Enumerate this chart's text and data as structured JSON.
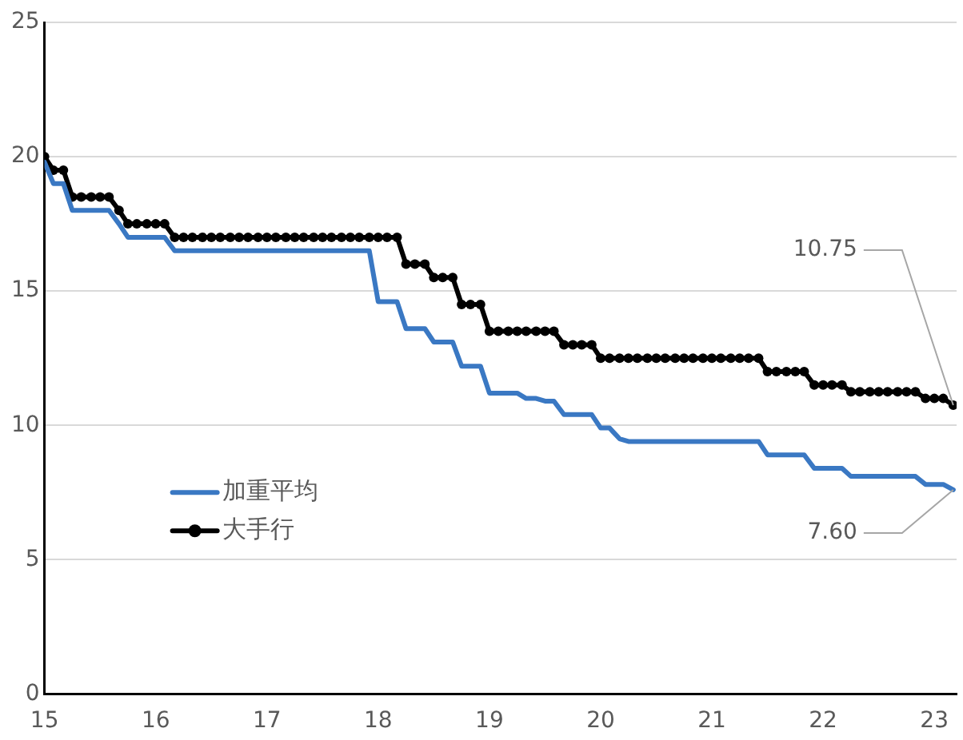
{
  "chart_data": {
    "type": "line",
    "x": [
      15,
      15.08,
      15.17,
      15.25,
      15.33,
      15.42,
      15.5,
      15.58,
      15.67,
      15.75,
      15.83,
      15.92,
      16,
      16.08,
      16.17,
      16.25,
      16.33,
      16.42,
      16.5,
      16.58,
      16.67,
      16.75,
      16.83,
      16.92,
      17,
      17.08,
      17.17,
      17.25,
      17.33,
      17.42,
      17.5,
      17.58,
      17.67,
      17.75,
      17.83,
      17.92,
      18,
      18.08,
      18.17,
      18.25,
      18.33,
      18.42,
      18.5,
      18.58,
      18.67,
      18.75,
      18.83,
      18.92,
      19,
      19.08,
      19.17,
      19.25,
      19.33,
      19.42,
      19.5,
      19.58,
      19.67,
      19.75,
      19.83,
      19.92,
      20,
      20.08,
      20.17,
      20.25,
      20.33,
      20.42,
      20.5,
      20.58,
      20.67,
      20.75,
      20.83,
      20.92,
      21,
      21.08,
      21.17,
      21.25,
      21.33,
      21.42,
      21.5,
      21.58,
      21.67,
      21.75,
      21.83,
      21.92,
      22,
      22.08,
      22.17,
      22.25,
      22.33,
      22.42,
      22.5,
      22.58,
      22.67,
      22.75,
      22.83,
      22.92,
      23,
      23.08,
      23.17
    ],
    "series": [
      {
        "name": "加重平均",
        "color": "#3a78c3",
        "marker": "none",
        "values": [
          19.8,
          19,
          19,
          18,
          18,
          18,
          18,
          18,
          17.5,
          17,
          17,
          17,
          17,
          17,
          16.5,
          16.5,
          16.5,
          16.5,
          16.5,
          16.5,
          16.5,
          16.5,
          16.5,
          16.5,
          16.5,
          16.5,
          16.5,
          16.5,
          16.5,
          16.5,
          16.5,
          16.5,
          16.5,
          16.5,
          16.5,
          16.5,
          14.6,
          14.6,
          14.6,
          13.6,
          13.6,
          13.6,
          13.1,
          13.1,
          13.1,
          12.2,
          12.2,
          12.2,
          11.2,
          11.2,
          11.2,
          11.2,
          11,
          11,
          10.9,
          10.9,
          10.4,
          10.4,
          10.4,
          10.4,
          9.9,
          9.9,
          9.5,
          9.4,
          9.4,
          9.4,
          9.4,
          9.4,
          9.4,
          9.4,
          9.4,
          9.4,
          9.4,
          9.4,
          9.4,
          9.4,
          9.4,
          9.4,
          8.9,
          8.9,
          8.9,
          8.9,
          8.9,
          8.4,
          8.4,
          8.4,
          8.4,
          8.1,
          8.1,
          8.1,
          8.1,
          8.1,
          8.1,
          8.1,
          8.1,
          7.8,
          7.8,
          7.8,
          7.6
        ]
      },
      {
        "name": "大手行",
        "color": "#000000",
        "marker": "circle",
        "values": [
          20,
          19.5,
          19.5,
          18.5,
          18.5,
          18.5,
          18.5,
          18.5,
          18,
          17.5,
          17.5,
          17.5,
          17.5,
          17.5,
          17,
          17,
          17,
          17,
          17,
          17,
          17,
          17,
          17,
          17,
          17,
          17,
          17,
          17,
          17,
          17,
          17,
          17,
          17,
          17,
          17,
          17,
          17,
          17,
          17,
          16,
          16,
          16,
          15.5,
          15.5,
          15.5,
          14.5,
          14.5,
          14.5,
          13.5,
          13.5,
          13.5,
          13.5,
          13.5,
          13.5,
          13.5,
          13.5,
          13,
          13,
          13,
          13,
          12.5,
          12.5,
          12.5,
          12.5,
          12.5,
          12.5,
          12.5,
          12.5,
          12.5,
          12.5,
          12.5,
          12.5,
          12.5,
          12.5,
          12.5,
          12.5,
          12.5,
          12.5,
          12,
          12,
          12,
          12,
          12,
          11.5,
          11.5,
          11.5,
          11.5,
          11.25,
          11.25,
          11.25,
          11.25,
          11.25,
          11.25,
          11.25,
          11.25,
          11,
          11,
          11,
          10.75
        ]
      }
    ],
    "xlim": [
      15,
      23.2
    ],
    "xticks": [
      15,
      16,
      17,
      18,
      19,
      20,
      21,
      22,
      23
    ],
    "ylim": [
      0,
      25
    ],
    "yticks": [
      0,
      5,
      10,
      15,
      20,
      25
    ],
    "grid": "y",
    "legend": "left",
    "annotations": [
      {
        "text": "10.75",
        "x": 23.17,
        "y": 10.75
      },
      {
        "text": "7.60",
        "x": 23.17,
        "y": 7.6
      }
    ]
  }
}
